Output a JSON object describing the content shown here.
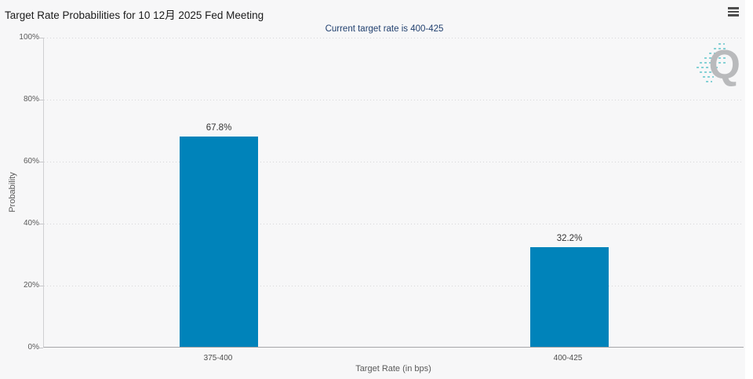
{
  "header": {
    "title": "Target Rate Probabilities for 10 12月 2025 Fed Meeting",
    "menu_icon": "hamburger-icon"
  },
  "chart_data": {
    "type": "bar",
    "title": "Target Rate Probabilities for 10 12月 2025 Fed Meeting",
    "subtitle": "Current target rate is 400-425",
    "categories": [
      "375-400",
      "400-425"
    ],
    "values": [
      67.8,
      32.2
    ],
    "value_labels": [
      "67.8%",
      "32.2%"
    ],
    "xlabel": "Target Rate (in bps)",
    "ylabel": "Probability",
    "ylim": [
      0,
      100
    ],
    "ytick_labels": [
      "0%",
      "20%",
      "40%",
      "60%",
      "80%",
      "100%"
    ],
    "grid": "horizontal-dotted",
    "legend": "none",
    "bar_color": "#0083ba",
    "subtitle_color": "#21406f",
    "background_color": "#f7f7f8",
    "watermark_letter": "Q"
  }
}
